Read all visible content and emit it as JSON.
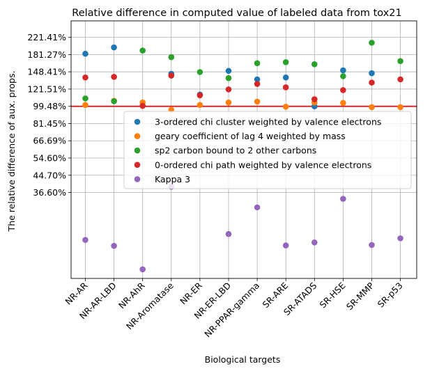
{
  "chart_data": {
    "type": "scatter",
    "title": "Relative difference in computed value of labeled data from tox21",
    "xlabel": "Biological targets",
    "ylabel": "The relative difference of aux. props.",
    "categories": [
      "NR-AR",
      "NR-AR-LBD",
      "NR-AhR",
      "NR-Aromatase",
      "NR-ER",
      "NR-ER-LBD",
      "NR-PPAR-gamma",
      "SR-ARE",
      "SR-ATADS",
      "SR-HSE",
      "SR-MMP",
      "SR-p53"
    ],
    "y_scale": "log",
    "y_ticks": [
      {
        "value": 221.41,
        "label": "221.41%"
      },
      {
        "value": 181.27,
        "label": "181.27%"
      },
      {
        "value": 148.41,
        "label": "148.41%"
      },
      {
        "value": 121.51,
        "label": "121.51%"
      },
      {
        "value": 99.48,
        "label": "99.48%"
      },
      {
        "value": 81.45,
        "label": "81.45%"
      },
      {
        "value": 66.69,
        "label": "66.69%"
      },
      {
        "value": 54.6,
        "label": "54.60%"
      },
      {
        "value": 44.7,
        "label": "44.70%"
      },
      {
        "value": 36.6,
        "label": "36.60%"
      }
    ],
    "ylim": [
      13.5,
      268
    ],
    "reference_line": {
      "value": 99.48,
      "color": "#d62728"
    },
    "grid": true,
    "legend_position": "center-right",
    "series": [
      {
        "name": "3-ordered chi cluster weighted by valence electrons",
        "color": "#1f77b4",
        "values": [
          183,
          197,
          null,
          145,
          114,
          150,
          136,
          139,
          99.5,
          151,
          146,
          null
        ]
      },
      {
        "name": "geary coefficient of lag 4 weighted by mass",
        "color": "#ff7f0e",
        "values": [
          101,
          106,
          104,
          95.5,
          101,
          104,
          105,
          99,
          104,
          103.5,
          98.5,
          98.5
        ]
      },
      {
        "name": "sp2 carbon bound to 2 other carbons",
        "color": "#2ca02c",
        "values": [
          109,
          105.5,
          190,
          176,
          148,
          138,
          164,
          166,
          162,
          141,
          208,
          168
        ]
      },
      {
        "name": "0-ordered chi path weighted by valence electrons",
        "color": "#d62728",
        "values": [
          139,
          140,
          100,
          142,
          113,
          121,
          129,
          124,
          108,
          120,
          131,
          136
        ]
      },
      {
        "name": "Kappa 3",
        "color": "#9467bd",
        "values": [
          21.1,
          19.7,
          15.0,
          39.1,
          null,
          22.6,
          30.8,
          19.8,
          20.5,
          34.0,
          19.9,
          21.5
        ]
      }
    ]
  }
}
